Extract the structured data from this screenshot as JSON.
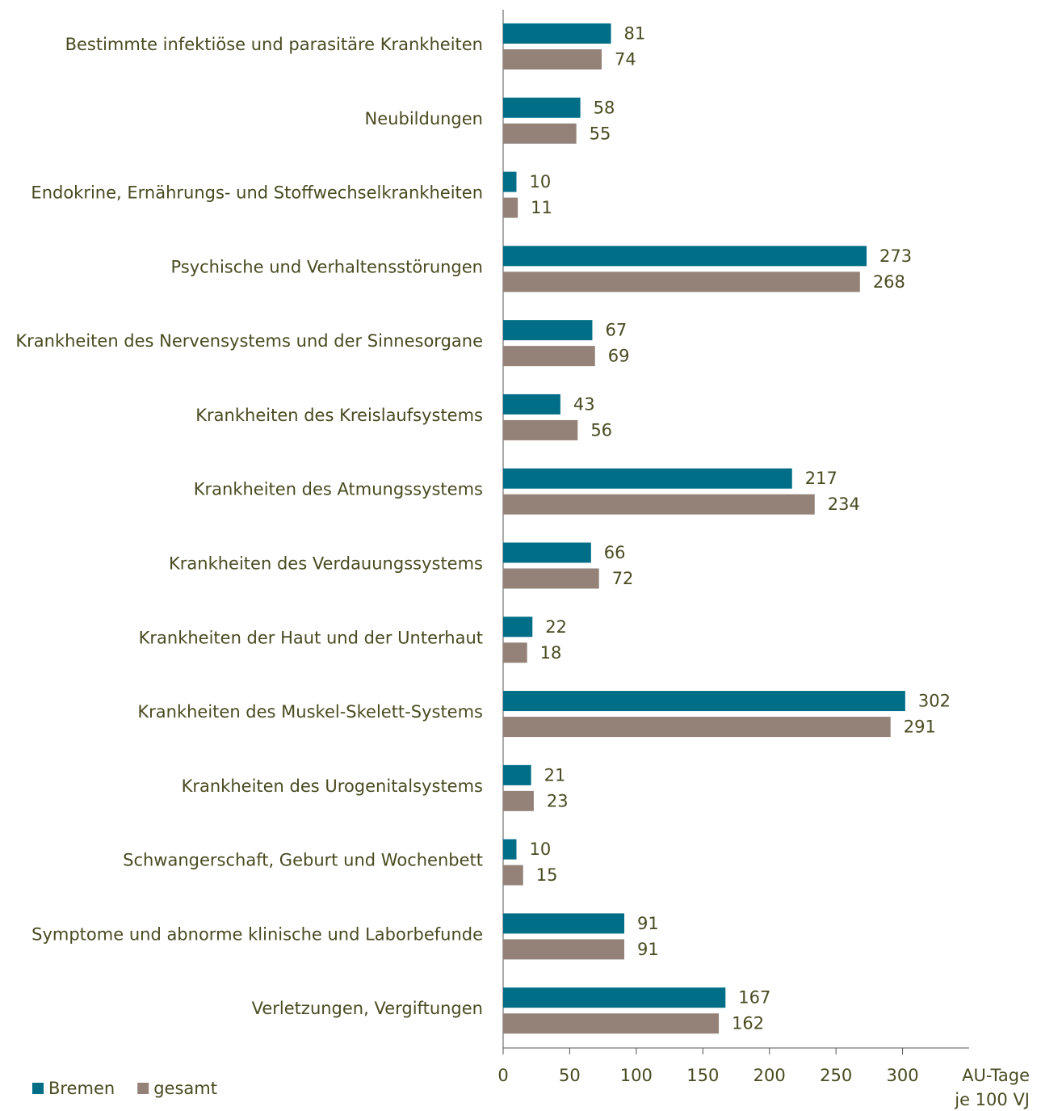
{
  "chart_data": {
    "type": "bar",
    "orientation": "horizontal",
    "categories": [
      "Bestimmte infektiöse und parasitäre Krankheiten",
      "Neubildungen",
      "Endokrine, Ernährungs- und Stoffwechselkrankheiten",
      "Psychische und Verhaltensstörungen",
      "Krankheiten des Nervensystems und der Sinnesorgane",
      "Krankheiten des Kreislaufsystems",
      "Krankheiten des Atmungssystems",
      "Krankheiten des Verdauungssystems",
      "Krankheiten der Haut und der Unterhaut",
      "Krankheiten des Muskel-Skelett-Systems",
      "Krankheiten des Urogenitalsystems",
      "Schwangerschaft, Geburt und Wochenbett",
      "Symptome und abnorme klinische und Laborbefunde",
      "Verletzungen, Vergiftungen"
    ],
    "series": [
      {
        "name": "Bremen",
        "color": "#006e87",
        "values": [
          81,
          58,
          10,
          273,
          67,
          43,
          217,
          66,
          22,
          302,
          21,
          10,
          91,
          167
        ]
      },
      {
        "name": "gesamt",
        "color": "#948279",
        "values": [
          74,
          55,
          11,
          268,
          69,
          56,
          234,
          72,
          18,
          291,
          23,
          15,
          91,
          162
        ]
      }
    ],
    "xlim": [
      0,
      350
    ],
    "xticks": [
      0,
      50,
      100,
      150,
      200,
      250,
      300
    ],
    "x_label": [
      "AU-Tage",
      "je 100 VJ"
    ],
    "legend": "bottom-left"
  }
}
